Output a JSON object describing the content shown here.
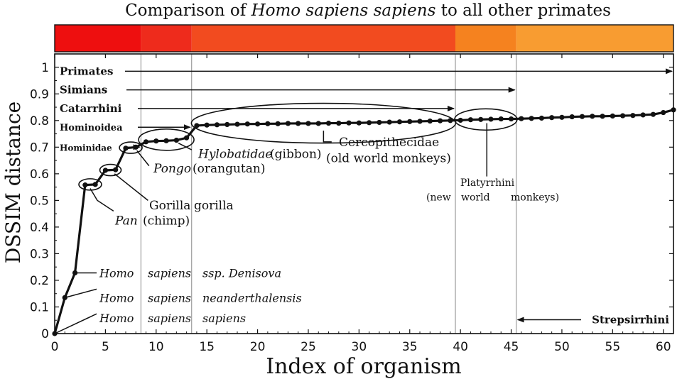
{
  "title_parts": [
    "Comparison of ",
    "Homo sapiens sapiens",
    " to all other primates"
  ],
  "chart_data": {
    "type": "line",
    "title": "Comparison of Homo sapiens sapiens to all other primates",
    "xlabel": "Index of organism",
    "ylabel": "DSSIM distance",
    "xlim": [
      0,
      61
    ],
    "ylim": [
      0,
      1.05
    ],
    "x_ticks": [
      0,
      5,
      10,
      15,
      20,
      25,
      30,
      35,
      40,
      45,
      50,
      55,
      60
    ],
    "y_ticks": [
      0,
      0.1,
      0.2,
      0.3,
      0.4,
      0.5,
      0.6,
      0.7,
      0.8,
      0.9,
      1
    ],
    "x_tick_labels": [
      "0",
      "5",
      "10",
      "15",
      "20",
      "25",
      "30",
      "35",
      "40",
      "45",
      "50",
      "55",
      "60"
    ],
    "y_tick_labels": [
      "0",
      "0.1",
      "0.2",
      "0.3",
      "0.4",
      "0.5",
      "0.6",
      "0.7",
      "0.8",
      "0.9",
      "1"
    ],
    "grid": false,
    "series": [
      {
        "x": [
          0,
          1,
          2,
          3,
          4,
          5,
          6,
          7,
          8,
          9,
          10,
          11,
          12,
          13,
          14,
          15,
          16,
          17,
          18,
          19,
          20,
          21,
          22,
          23,
          24,
          25,
          26,
          27,
          28,
          29,
          30,
          31,
          32,
          33,
          34,
          35,
          36,
          37,
          38,
          39,
          40,
          41,
          42,
          43,
          44,
          45,
          46,
          47,
          48,
          49,
          50,
          51,
          52,
          53,
          54,
          55,
          56,
          57,
          58,
          59,
          60,
          61
        ],
        "y": [
          0,
          0.135,
          0.228,
          0.558,
          0.56,
          0.613,
          0.615,
          0.696,
          0.7,
          0.72,
          0.723,
          0.724,
          0.726,
          0.735,
          0.781,
          0.783,
          0.784,
          0.785,
          0.786,
          0.787,
          0.787,
          0.788,
          0.788,
          0.789,
          0.789,
          0.789,
          0.789,
          0.79,
          0.79,
          0.791,
          0.791,
          0.792,
          0.793,
          0.794,
          0.795,
          0.796,
          0.797,
          0.798,
          0.799,
          0.8,
          0.801,
          0.803,
          0.804,
          0.805,
          0.806,
          0.806,
          0.807,
          0.808,
          0.809,
          0.811,
          0.812,
          0.814,
          0.815,
          0.816,
          0.816,
          0.817,
          0.818,
          0.819,
          0.821,
          0.823,
          0.83,
          0.84
        ]
      }
    ],
    "vertical_lines": [
      8.5,
      13.5,
      39.5,
      45.5
    ],
    "color_bands": [
      {
        "from": 0,
        "to": 8.5,
        "color": "#ee0f0f"
      },
      {
        "from": 8.5,
        "to": 13.5,
        "color": "#ee2b1c"
      },
      {
        "from": 13.5,
        "to": 39.5,
        "color": "#f24b1f"
      },
      {
        "from": 39.5,
        "to": 45.5,
        "color": "#f5821f"
      },
      {
        "from": 45.5,
        "to": 61,
        "color": "#f89c31"
      }
    ],
    "clade_arrows": [
      {
        "label": "Primates",
        "y": 0.985,
        "to_x": 61
      },
      {
        "label": "Simians",
        "y": 0.915,
        "to_x": 45.5
      },
      {
        "label": "Catarrhini",
        "y": 0.845,
        "to_x": 39.5
      },
      {
        "label": "Hominoidea",
        "y": 0.775,
        "to_x": 13.5
      },
      {
        "label": "Hominidae",
        "y": 0.7,
        "to_x": 8.5
      }
    ],
    "strepsirrhini": {
      "label": "Strepsirrhini",
      "y": 0.052,
      "from_x": 45.5
    },
    "annotations": {
      "homo_denisova": [
        "Homo",
        "sapiens",
        "ssp. Denisova"
      ],
      "homo_neanderthalensis": [
        "Homo",
        "sapiens",
        "neanderthalensis"
      ],
      "homo_sapiens": [
        "Homo",
        "sapiens",
        "sapiens"
      ],
      "pan": [
        "Pan",
        "(chimp)"
      ],
      "gorilla": [
        "Gorilla",
        "gorilla"
      ],
      "pongo": [
        "Pongo",
        "(orangutan)"
      ],
      "hylobatidae": [
        "Hylobatidae",
        "(gibbon)"
      ],
      "cercopithecidae": [
        "Cercopithecidae",
        "(old world monkeys)"
      ],
      "platyrrhini": [
        "Platyrrhini",
        "(new",
        "world",
        "monkeys)"
      ]
    }
  }
}
